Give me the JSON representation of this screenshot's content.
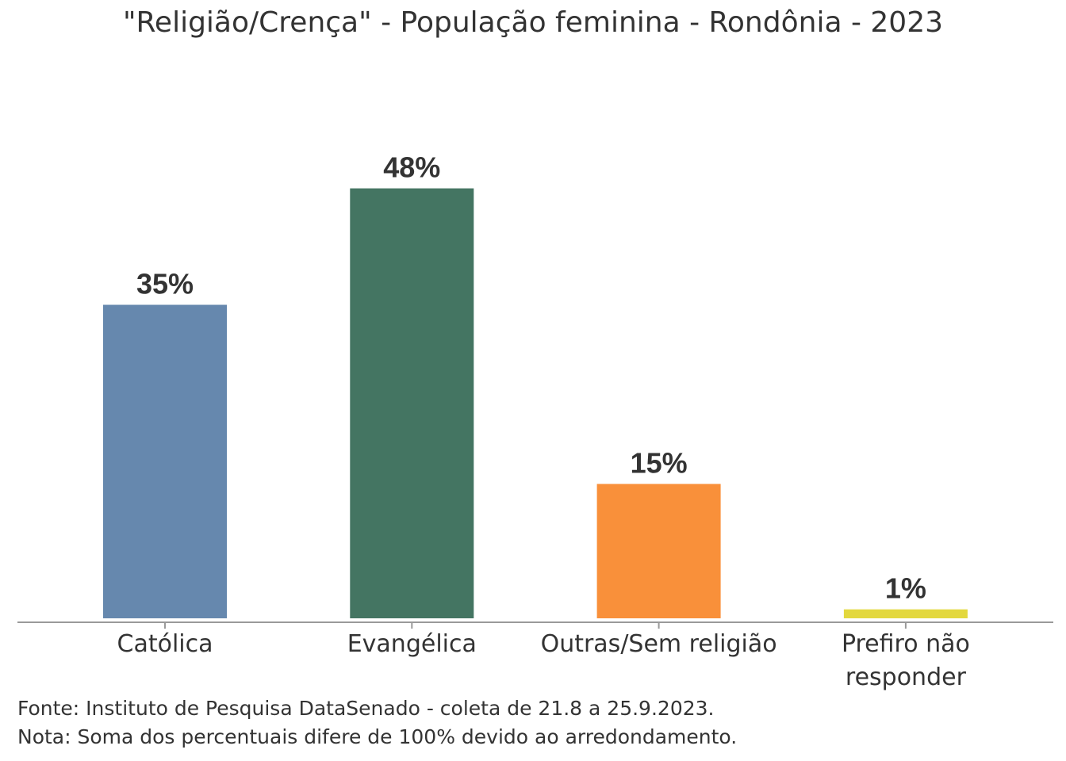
{
  "chart_data": {
    "type": "bar",
    "title": "\"Religião/Crença\" - População feminina - Rondônia - 2023",
    "categories": [
      [
        "Católica"
      ],
      [
        "Evangélica"
      ],
      [
        "Outras/Sem religião"
      ],
      [
        "Prefiro não",
        "responder"
      ]
    ],
    "values": [
      35,
      48,
      15,
      1
    ],
    "value_labels": [
      "35%",
      "48%",
      "15%",
      "1%"
    ],
    "colors": [
      "#6688ae",
      "#447562",
      "#f9903a",
      "#e3d83e"
    ],
    "ylim": [
      0,
      100
    ],
    "xlabel": "",
    "ylabel": "",
    "grid": false,
    "legend": "none"
  },
  "footnotes": {
    "source": "Fonte: Instituto de Pesquisa DataSenado - coleta de 21.8 a 25.9.2023.",
    "note": "Nota: Soma dos percentuais difere de 100% devido ao arredondamento."
  }
}
